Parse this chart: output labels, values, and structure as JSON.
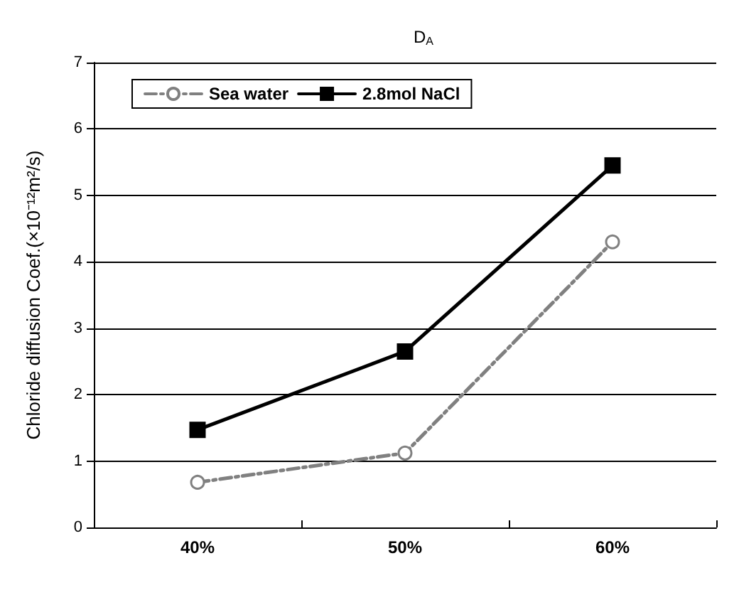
{
  "chart_data": {
    "type": "line",
    "title": "D$_{A}$",
    "ylabel": "Chloride diffusion Coef.(×10⁻¹²m²/s)",
    "categories": [
      "40%",
      "50%",
      "60%"
    ],
    "series": [
      {
        "name": "Sea water",
        "color": "#808080",
        "values": [
          0.68,
          1.12,
          4.3
        ],
        "marker": "circle",
        "line_style": "dashed"
      },
      {
        "name": "2.8mol NaCl",
        "color": "#000000",
        "values": [
          1.47,
          2.65,
          5.45
        ],
        "marker": "square",
        "line_style": "solid"
      }
    ],
    "ylim": [
      0,
      7
    ],
    "yticks": [
      0,
      1,
      2,
      3,
      4,
      5,
      6,
      7
    ],
    "grid": "y",
    "legend": "top left"
  }
}
